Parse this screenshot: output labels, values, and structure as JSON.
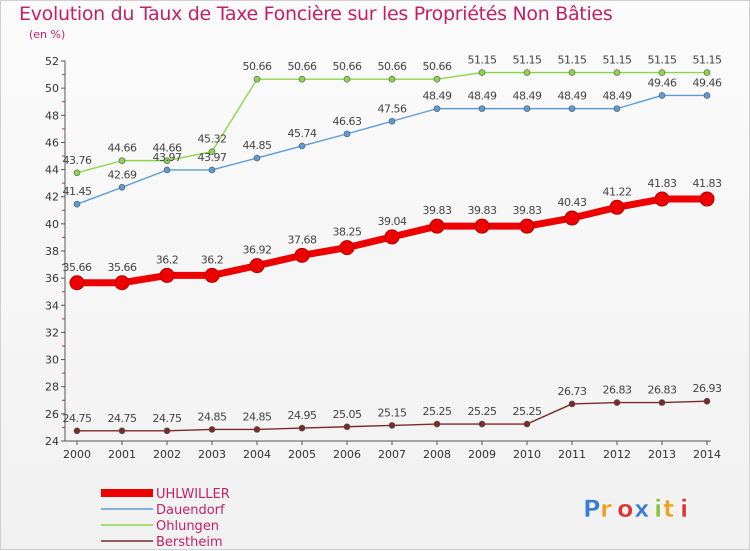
{
  "chart_data": {
    "type": "line",
    "title": "Evolution du Taux de Taxe Foncière sur les Propriétés Non Bâties",
    "ylabel": "(en %)",
    "xlabel": "",
    "x": [
      "2000",
      "2001",
      "2002",
      "2003",
      "2004",
      "2005",
      "2006",
      "2007",
      "2008",
      "2009",
      "2010",
      "2011",
      "2012",
      "2013",
      "2014"
    ],
    "ylim": [
      24,
      52
    ],
    "yticks": [
      24,
      26,
      28,
      30,
      32,
      34,
      36,
      38,
      40,
      42,
      44,
      46,
      48,
      50,
      52
    ],
    "grid": false,
    "legend_position": "bottom-left",
    "series": [
      {
        "name": "UHLWILLER",
        "color": "#ee0000",
        "values": [
          35.66,
          35.66,
          36.2,
          36.2,
          36.92,
          37.68,
          38.25,
          39.04,
          39.83,
          39.83,
          39.83,
          40.43,
          41.22,
          41.83,
          41.83
        ],
        "labels": [
          "35.66",
          "35.66",
          "36.2",
          "36.2",
          "36.92",
          "37.68",
          "38.25",
          "39.04",
          "39.83",
          "39.83",
          "39.83",
          "40.43",
          "41.22",
          "41.83",
          "41.83"
        ]
      },
      {
        "name": "Dauendorf",
        "color": "#5b9bd5",
        "values": [
          41.45,
          42.69,
          43.97,
          43.97,
          44.85,
          45.74,
          46.63,
          47.56,
          48.49,
          48.49,
          48.49,
          48.49,
          48.49,
          49.46,
          49.46
        ],
        "labels": [
          "41.45",
          "42.69",
          "43.97",
          "43.97",
          "44.85",
          "45.74",
          "46.63",
          "47.56",
          "48.49",
          "48.49",
          "48.49",
          "48.49",
          "48.49",
          "49.46",
          "49.46"
        ]
      },
      {
        "name": "Ohlungen",
        "color": "#8ad64a",
        "values": [
          43.76,
          44.66,
          44.66,
          45.32,
          50.66,
          50.66,
          50.66,
          50.66,
          50.66,
          51.15,
          51.15,
          51.15,
          51.15,
          51.15,
          51.15
        ],
        "labels": [
          "43.76",
          "44.66",
          "44.66",
          "45.32",
          "50.66",
          "50.66",
          "50.66",
          "50.66",
          "50.66",
          "51.15",
          "51.15",
          "51.15",
          "51.15",
          "51.15",
          "51.15"
        ]
      },
      {
        "name": "Berstheim",
        "color": "#7a2a2a",
        "values": [
          24.75,
          24.75,
          24.75,
          24.85,
          24.85,
          24.95,
          25.05,
          25.15,
          25.25,
          25.25,
          25.25,
          26.73,
          26.83,
          26.83,
          26.93
        ],
        "labels": [
          "24.75",
          "24.75",
          "24.75",
          "24.85",
          "24.85",
          "24.95",
          "25.05",
          "25.15",
          "25.25",
          "25.25",
          "25.25",
          "26.73",
          "26.83",
          "26.83",
          "26.93"
        ]
      }
    ]
  },
  "logo": {
    "text": "Proxiti",
    "letter_colors": [
      "#3a7bd5",
      "#f0a020",
      "#e03030",
      "#3a7bd5",
      "#8ac040",
      "#f0a020",
      "#e03030"
    ]
  }
}
